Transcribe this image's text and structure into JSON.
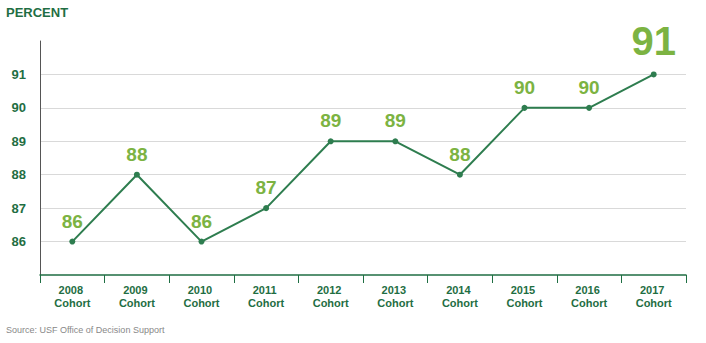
{
  "chart_data": {
    "type": "line",
    "ylabel": "PERCENT",
    "annotation": "Source: USF Office of Decision Support",
    "categories": [
      "2008 Cohort",
      "2009 Cohort",
      "2010 Cohort",
      "2011 Cohort",
      "2012 Cohort",
      "2013 Cohort",
      "2014 Cohort",
      "2015 Cohort",
      "2016 Cohort",
      "2017 Cohort"
    ],
    "values": [
      86,
      88,
      86,
      87,
      89,
      89,
      88,
      90,
      90,
      91
    ],
    "color": "#2e7d4f",
    "ylim": [
      85,
      92
    ],
    "yticks": [
      86,
      87,
      88,
      89,
      90,
      91
    ],
    "grid": true,
    "data_labels": true,
    "marker": "circle"
  }
}
